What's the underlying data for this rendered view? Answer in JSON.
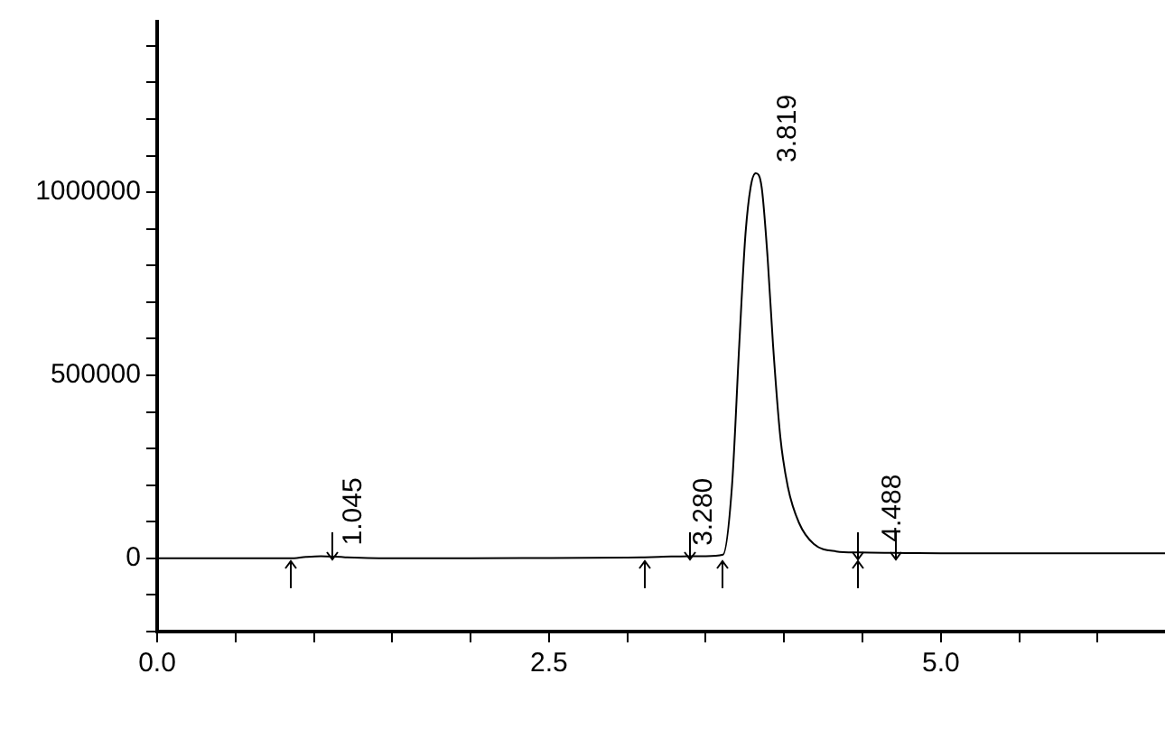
{
  "chart_data": {
    "type": "line",
    "x": [
      0,
      0.5,
      0.85,
      0.95,
      1.045,
      1.2,
      1.5,
      2.0,
      2.5,
      3.0,
      3.11,
      3.2,
      3.28,
      3.5,
      3.61,
      3.667,
      3.714,
      3.752,
      3.786,
      3.819,
      3.857,
      3.895,
      3.929,
      3.976,
      4.024,
      4.095,
      4.19,
      4.333,
      4.476,
      4.71,
      5.0,
      5.5,
      6.0,
      6.43
    ],
    "series": [
      {
        "color": "#000000",
        "values": [
          0,
          0,
          0,
          4000,
          6000,
          3000,
          0,
          0,
          1000,
          2000,
          3000,
          4000,
          5000,
          6000,
          10000,
          195000,
          585000,
          877000,
          1013000,
          1052000,
          1013000,
          819000,
          585000,
          331000,
          195000,
          97000,
          39000,
          19000,
          16000,
          15000,
          14000,
          14000,
          14000,
          14000
        ]
      }
    ],
    "xlim": [
      0,
      6.43
    ],
    "ylim": [
      -200000,
      1466000
    ],
    "xticks": [
      {
        "value": 0,
        "label": "0.0"
      },
      {
        "value": 0.5,
        "label": null
      },
      {
        "value": 1,
        "label": null
      },
      {
        "value": 1.5,
        "label": null
      },
      {
        "value": 2,
        "label": null
      },
      {
        "value": 2.5,
        "label": "2.5"
      },
      {
        "value": 3,
        "label": null
      },
      {
        "value": 3.5,
        "label": null
      },
      {
        "value": 4,
        "label": null
      },
      {
        "value": 4.5,
        "label": null
      },
      {
        "value": 5,
        "label": "5.0"
      },
      {
        "value": 5.5,
        "label": null
      },
      {
        "value": 6,
        "label": null
      }
    ],
    "yticks": [
      {
        "value": -200000,
        "label": null
      },
      {
        "value": -100000,
        "label": null
      },
      0,
      {
        "value": 100000,
        "label": null
      },
      {
        "value": 200000,
        "label": null
      },
      {
        "value": 300000,
        "label": null
      },
      {
        "value": 400000,
        "label": null
      },
      500000,
      {
        "value": 600000,
        "label": null
      },
      {
        "value": 700000,
        "label": null
      },
      {
        "value": 800000,
        "label": null
      },
      {
        "value": 900000,
        "label": null
      },
      1000000,
      {
        "value": 1100000,
        "label": null
      },
      {
        "value": 1200000,
        "label": null
      },
      {
        "value": 1300000,
        "label": null
      },
      {
        "value": 1400000,
        "label": null
      }
    ],
    "annotations": [
      {
        "text": "1.045",
        "x": 1.045,
        "y": 6000
      },
      {
        "text": "3.280",
        "x": 3.28,
        "y": 5000
      },
      {
        "text": "3.819",
        "x": 3.819,
        "y": 1052000
      },
      {
        "text": "4.488",
        "x": 4.488,
        "y": 15000
      }
    ],
    "grid": false,
    "legend": false,
    "marker": "none",
    "line_style": "solid"
  }
}
